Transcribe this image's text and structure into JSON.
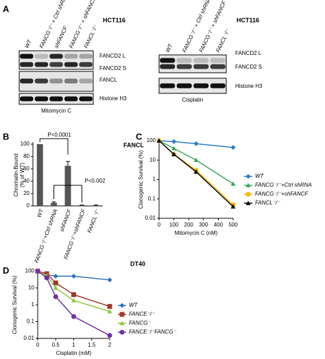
{
  "panel_labels": [
    "A",
    "B",
    "C",
    "D"
  ],
  "blots": [
    {
      "cell_line": "HCT116",
      "lanes": [
        "WT",
        "FANCG⁻/⁻ + Ctrl shRNA",
        "shFANCF",
        "FANCG⁻/⁻ + shFANCF",
        "FANCL⁻/⁻"
      ],
      "bands": [
        "FANCD2 L",
        "FANCD2 S",
        "FANCL",
        "Histone H3"
      ],
      "treatment": "Mitomycin C"
    },
    {
      "cell_line": "HCT116",
      "lanes": [
        "WT",
        "FANCG⁻/⁻ + Ctrl shRNA",
        "FANCG⁻/⁻ + shFANCF",
        "FANCL⁻/⁻"
      ],
      "bands": [
        "FANCD2 L",
        "FANCD2 S",
        "Histone H3"
      ],
      "treatment": "Cisplatin"
    }
  ],
  "chart_data": [
    {
      "type": "bar",
      "title": "FANCL",
      "ylabel": [
        "Chromatin-Bound",
        "(% of WT)"
      ],
      "categories": [
        "WT",
        "FANCG⁻/⁻+Ctrl shRNA",
        "shFANCF",
        "FANCG⁻/⁻+shFANCF",
        "FANCL⁻/⁻"
      ],
      "values": [
        100,
        5,
        65,
        1,
        1
      ],
      "errors": [
        null,
        1.5,
        7,
        0.5,
        0.5
      ],
      "color": "#555555",
      "ylim": [
        0,
        100
      ],
      "yticks": [
        0,
        20,
        40,
        60,
        80,
        100
      ],
      "annotations": [
        "P<0.0001",
        "P<0.002"
      ]
    },
    {
      "type": "line",
      "xlabel": "Mitomycin C (nM)",
      "ylabel": "Clonogenic Survival (%)",
      "log_y": true,
      "xlim": [
        0,
        500
      ],
      "xticks": [
        0,
        100,
        200,
        300,
        400,
        500
      ],
      "ylim": [
        0.01,
        100
      ],
      "yticks": [
        0.01,
        0.1,
        1,
        10,
        100
      ],
      "legend": "right",
      "series": [
        {
          "name": "WT",
          "color": "#2b7bc4",
          "marker": "diamond",
          "x": [
            0,
            100,
            250,
            500
          ],
          "values": [
            100,
            90,
            70,
            45
          ]
        },
        {
          "name": "FANCG⁻/⁻+Ctrl shRNA",
          "color": "#3aa55a",
          "marker": "triangle",
          "x": [
            0,
            100,
            250,
            500
          ],
          "values": [
            100,
            40,
            10,
            0.6
          ]
        },
        {
          "name": "FANCG⁻/⁻+shFANCF",
          "color": "#f5b800",
          "marker": "circle",
          "x": [
            0,
            100,
            250,
            500
          ],
          "values": [
            100,
            20,
            3,
            0.05
          ]
        },
        {
          "name": "FANCL⁻/⁻",
          "color": "#000000",
          "marker": "triangle",
          "x": [
            0,
            100,
            250,
            500
          ],
          "values": [
            100,
            20,
            2.5,
            0.04
          ]
        }
      ]
    },
    {
      "type": "line",
      "title": "DT40",
      "xlabel": "Cisplatin (mM)",
      "ylabel": "Clonogenic Survival (%)",
      "log_y": true,
      "xlim": [
        0,
        2
      ],
      "xticks": [
        0,
        0.5,
        1,
        1.5,
        2
      ],
      "ylim": [
        0.01,
        100
      ],
      "yticks": [
        0.01,
        0.1,
        1,
        10,
        100
      ],
      "legend": "right",
      "series": [
        {
          "name": "WT",
          "color": "#2b6fbb",
          "marker": "diamond",
          "x": [
            0,
            0.25,
            0.5,
            1,
            2
          ],
          "values": [
            100,
            60,
            50,
            50,
            30
          ]
        },
        {
          "name": "FANCE⁻/⁻",
          "color": "#a0392a",
          "marker": "square",
          "x": [
            0,
            0.25,
            0.5,
            1,
            2
          ],
          "values": [
            100,
            70,
            20,
            4,
            0.8
          ]
        },
        {
          "name": "FANCG⁻",
          "color": "#8dc63f",
          "marker": "triangle",
          "x": [
            0,
            0.25,
            0.5,
            1,
            2
          ],
          "values": [
            100,
            55,
            10,
            1.8,
            0.4
          ]
        },
        {
          "name": "FANCE⁻/⁻FANCG⁻",
          "color": "#7030a0",
          "marker": "circle",
          "x": [
            0,
            0.25,
            0.5,
            1,
            2
          ],
          "values": [
            100,
            40,
            3,
            0.2,
            0.015
          ]
        }
      ]
    }
  ]
}
